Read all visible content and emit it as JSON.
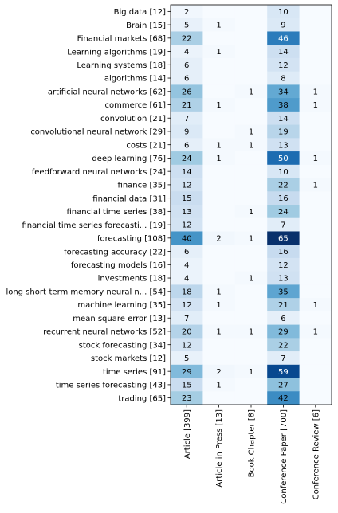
{
  "chart_data": {
    "type": "heatmap",
    "title": "",
    "xlabel": "",
    "ylabel": "",
    "colormap": "Blues",
    "vmin": 0,
    "vmax": 65,
    "rows": [
      "Big data [12]",
      "Brain [15]",
      "Financial markets [68]",
      "Learning algorithms [19]",
      "Learning systems [18]",
      "algorithms [14]",
      "artificial neural networks [62]",
      "commerce [61]",
      "convolution [21]",
      "convolutional neural network [29]",
      "costs [21]",
      "deep learning [76]",
      "feedforward neural networks [24]",
      "finance [35]",
      "financial data [31]",
      "financial time series [38]",
      "financial time series forecasti... [19]",
      "forecasting [108]",
      "forecasting accuracy [22]",
      "forecasting models [16]",
      "investments [18]",
      "long short-term memory neural n... [54]",
      "machine learning [35]",
      "mean square error [13]",
      "recurrent neural networks [52]",
      "stock forecasting [34]",
      "stock markets [12]",
      "time series [91]",
      "time series forecasting [43]",
      "trading [65]"
    ],
    "columns": [
      "Article [399]",
      "Article in Press [13]",
      "Book Chapter [8]",
      "Conference Paper [700]",
      "Conference Review [6]"
    ],
    "values": [
      [
        2,
        0,
        0,
        10,
        0
      ],
      [
        5,
        1,
        0,
        9,
        0
      ],
      [
        22,
        0,
        0,
        46,
        0
      ],
      [
        4,
        1,
        0,
        14,
        0
      ],
      [
        6,
        0,
        0,
        12,
        0
      ],
      [
        6,
        0,
        0,
        8,
        0
      ],
      [
        26,
        0,
        1,
        34,
        1
      ],
      [
        21,
        1,
        0,
        38,
        1
      ],
      [
        7,
        0,
        0,
        14,
        0
      ],
      [
        9,
        0,
        1,
        19,
        0
      ],
      [
        6,
        1,
        1,
        13,
        0
      ],
      [
        24,
        1,
        0,
        50,
        1
      ],
      [
        14,
        0,
        0,
        10,
        0
      ],
      [
        12,
        0,
        0,
        22,
        1
      ],
      [
        15,
        0,
        0,
        16,
        0
      ],
      [
        13,
        0,
        1,
        24,
        0
      ],
      [
        12,
        0,
        0,
        7,
        0
      ],
      [
        40,
        2,
        1,
        65,
        0
      ],
      [
        6,
        0,
        0,
        16,
        0
      ],
      [
        4,
        0,
        0,
        12,
        0
      ],
      [
        4,
        0,
        1,
        13,
        0
      ],
      [
        18,
        1,
        0,
        35,
        0
      ],
      [
        12,
        1,
        0,
        21,
        1
      ],
      [
        7,
        0,
        0,
        6,
        0
      ],
      [
        20,
        1,
        1,
        29,
        1
      ],
      [
        12,
        0,
        0,
        22,
        0
      ],
      [
        5,
        0,
        0,
        7,
        0
      ],
      [
        29,
        2,
        1,
        59,
        0
      ],
      [
        15,
        1,
        0,
        27,
        0
      ],
      [
        23,
        0,
        0,
        42,
        0
      ]
    ],
    "zero_label": "",
    "grid": false
  }
}
